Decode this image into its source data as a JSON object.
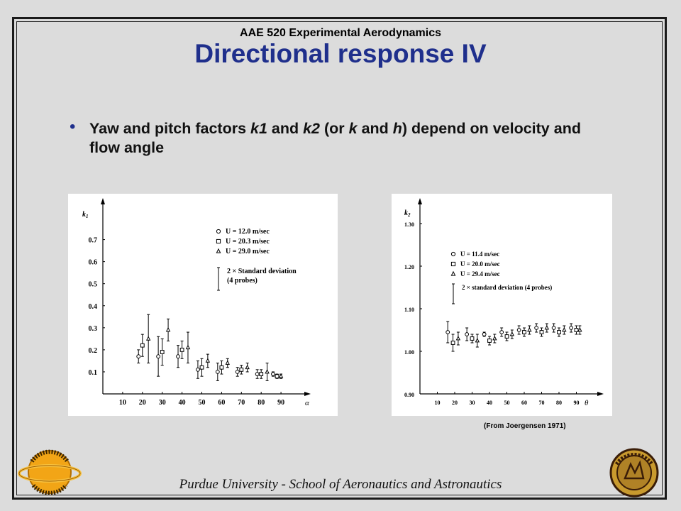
{
  "header": {
    "course": "AAE 520 Experimental Aerodynamics",
    "title": "Directional response IV"
  },
  "bullet": {
    "parts": [
      {
        "t": "Yaw and pitch factors "
      },
      {
        "t": "k1",
        "i": true
      },
      {
        "t": " and "
      },
      {
        "t": "k2",
        "i": true
      },
      {
        "t": " (or "
      },
      {
        "t": "k",
        "i": true
      },
      {
        "t": " and "
      },
      {
        "t": "h",
        "i": true
      },
      {
        "t": ") depend on velocity and flow angle"
      }
    ]
  },
  "source_note": "(From Joergensen 1971)",
  "footer": "Purdue University - School of Aeronautics and Astronautics",
  "colors": {
    "title": "#1f2f8c",
    "background": "#dcdcdc"
  },
  "logos": [
    "aeronautics-astronautics-logo",
    "purdue-university-seal"
  ],
  "chart_data": [
    {
      "type": "scatter",
      "ylabel": "k1",
      "xlabel": "α",
      "xticks": [
        "10",
        "20",
        "30",
        "40",
        "50",
        "60",
        "70",
        "80",
        "90"
      ],
      "yticks": [
        "0.1",
        "0.2",
        "0.3",
        "0.4",
        "0.5",
        "0.6",
        "0.7"
      ],
      "xlim": [
        0,
        100
      ],
      "ylim": [
        0,
        0.85
      ],
      "legend": [
        {
          "marker": "circle",
          "label": "U = 12.0 m/sec"
        },
        {
          "marker": "square",
          "label": "U = 20.3 m/sec"
        },
        {
          "marker": "triangle",
          "label": "U = 29.0 m/sec"
        }
      ],
      "legend_note": [
        "2 × Standard deviation",
        "(4 probes)"
      ],
      "series": [
        {
          "marker": "circle",
          "points": [
            [
              18,
              0.17,
              0.03
            ],
            [
              28,
              0.17,
              0.09
            ],
            [
              38,
              0.17,
              0.05
            ],
            [
              48,
              0.11,
              0.04
            ],
            [
              58,
              0.1,
              0.04
            ],
            [
              68,
              0.1,
              0.02
            ],
            [
              78,
              0.09,
              0.02
            ],
            [
              86,
              0.09,
              0.01
            ]
          ]
        },
        {
          "marker": "square",
          "points": [
            [
              20,
              0.22,
              0.05
            ],
            [
              30,
              0.19,
              0.06
            ],
            [
              40,
              0.2,
              0.04
            ],
            [
              50,
              0.12,
              0.04
            ],
            [
              60,
              0.12,
              0.03
            ],
            [
              70,
              0.11,
              0.02
            ],
            [
              80,
              0.09,
              0.02
            ],
            [
              88,
              0.08,
              0.01
            ]
          ]
        },
        {
          "marker": "triangle",
          "points": [
            [
              23,
              0.25,
              0.11
            ],
            [
              33,
              0.29,
              0.05
            ],
            [
              43,
              0.21,
              0.07
            ],
            [
              53,
              0.15,
              0.03
            ],
            [
              63,
              0.14,
              0.02
            ],
            [
              73,
              0.12,
              0.02
            ],
            [
              83,
              0.1,
              0.04
            ],
            [
              90,
              0.08,
              0.01
            ]
          ]
        }
      ]
    },
    {
      "type": "scatter",
      "ylabel": "k2",
      "xlabel": "θ",
      "xticks": [
        "10",
        "20",
        "30",
        "40",
        "50",
        "60",
        "70",
        "80",
        "90"
      ],
      "yticks": [
        "0.90",
        "1.00",
        "1.10",
        "1.20",
        "1.30"
      ],
      "xlim": [
        0,
        100
      ],
      "ylim": [
        0.9,
        1.34
      ],
      "legend": [
        {
          "marker": "circle",
          "label": "U = 11.4 m/sec"
        },
        {
          "marker": "square",
          "label": "U = 20.0 m/sec"
        },
        {
          "marker": "triangle",
          "label": "U = 29.4 m/sec"
        }
      ],
      "legend_note": [
        "2 × standard deviation (4 probes)"
      ],
      "series": [
        {
          "marker": "circle",
          "points": [
            [
              16,
              1.045,
              0.025
            ],
            [
              27,
              1.04,
              0.015
            ],
            [
              37,
              1.04,
              0.005
            ],
            [
              47,
              1.045,
              0.01
            ],
            [
              57,
              1.05,
              0.01
            ],
            [
              67,
              1.055,
              0.01
            ],
            [
              77,
              1.055,
              0.01
            ],
            [
              87,
              1.055,
              0.01
            ]
          ]
        },
        {
          "marker": "square",
          "points": [
            [
              19,
              1.02,
              0.02
            ],
            [
              30,
              1.03,
              0.01
            ],
            [
              40,
              1.025,
              0.01
            ],
            [
              50,
              1.035,
              0.01
            ],
            [
              60,
              1.045,
              0.01
            ],
            [
              70,
              1.045,
              0.01
            ],
            [
              80,
              1.045,
              0.01
            ],
            [
              90,
              1.05,
              0.01
            ]
          ]
        },
        {
          "marker": "triangle",
          "points": [
            [
              22,
              1.03,
              0.015
            ],
            [
              33,
              1.025,
              0.015
            ],
            [
              43,
              1.03,
              0.01
            ],
            [
              53,
              1.04,
              0.01
            ],
            [
              63,
              1.05,
              0.01
            ],
            [
              73,
              1.055,
              0.01
            ],
            [
              83,
              1.05,
              0.01
            ],
            [
              92,
              1.05,
              0.01
            ]
          ]
        }
      ]
    }
  ]
}
